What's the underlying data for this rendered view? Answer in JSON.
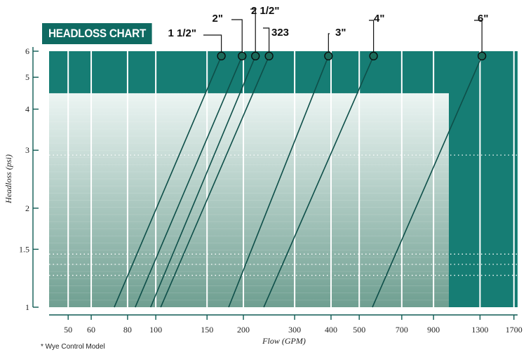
{
  "title": "HEADLOSS CHART",
  "footnote": "* Wye Control Model",
  "colors": {
    "dark": "#167d74",
    "title_bg": "#0f6a62",
    "grad_top": "#ecf5f3",
    "grad_bottom": "#6f9f91",
    "line": "#0e4f49",
    "marker": "#1a6b5a"
  },
  "chart_data": {
    "type": "line",
    "xlabel": "Flow (GPM)",
    "ylabel": "Headloss (psi)",
    "x_scale": "log",
    "y_scale": "log",
    "xlim": [
      43,
      1750
    ],
    "ylim": [
      1,
      6
    ],
    "x_ticks": [
      "50",
      "60",
      "80",
      "100",
      "150",
      "200",
      "300",
      "400",
      "500",
      "700",
      "900",
      "1300",
      "1700"
    ],
    "x_tick_values": [
      50,
      60,
      80,
      100,
      150,
      200,
      300,
      400,
      500,
      700,
      900,
      1300,
      1700
    ],
    "y_ticks": [
      "1",
      "1.5",
      "2",
      "3",
      "4",
      "5",
      "6"
    ],
    "y_tick_values": [
      1,
      1.5,
      2,
      3,
      4,
      5,
      6
    ],
    "series": [
      {
        "name": "1 1/2\"",
        "x": [
          72,
          168
        ],
        "y": [
          1,
          5.8
        ]
      },
      {
        "name": "2\"",
        "x": [
          85,
          198
        ],
        "y": [
          1,
          5.8
        ]
      },
      {
        "name": "2 1/2\"",
        "x": [
          96,
          220
        ],
        "y": [
          1,
          5.8
        ]
      },
      {
        "name": "323",
        "x": [
          104,
          245
        ],
        "y": [
          1,
          5.8
        ]
      },
      {
        "name": "3\"",
        "x": [
          178,
          392
        ],
        "y": [
          1,
          5.8
        ]
      },
      {
        "name": "4\"",
        "x": [
          235,
          560
        ],
        "y": [
          1,
          5.8
        ]
      },
      {
        "name": "6\"",
        "x": [
          555,
          1320
        ],
        "y": [
          1,
          5.8
        ]
      }
    ]
  }
}
